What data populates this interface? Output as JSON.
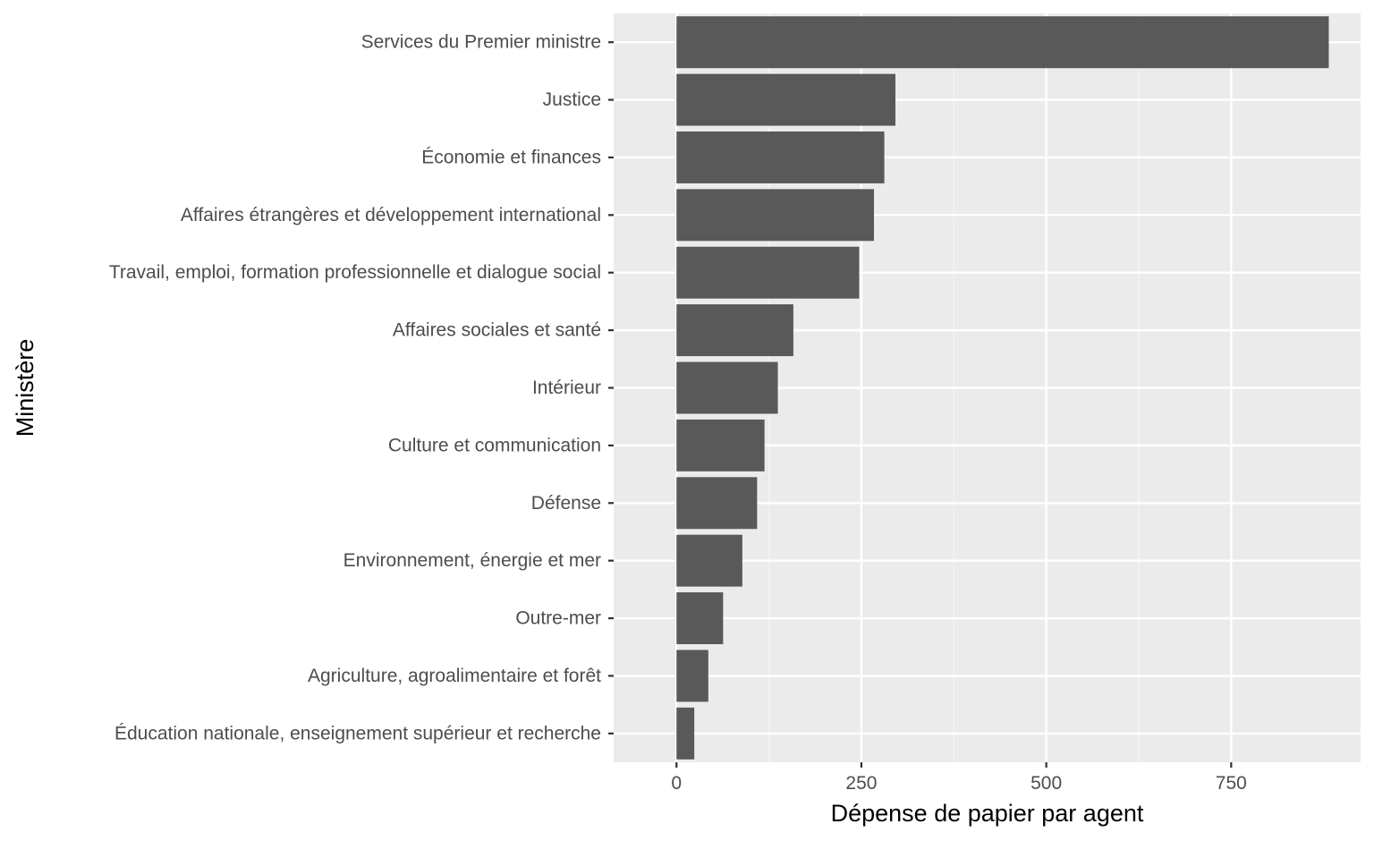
{
  "chart_data": {
    "type": "bar",
    "orientation": "horizontal",
    "categories": [
      "Services du Premier ministre",
      "Justice",
      "Économie et finances",
      "Affaires étrangères et développement international",
      "Travail, emploi, formation professionnelle et dialogue social",
      "Affaires sociales et santé",
      "Intérieur",
      "Culture et communication",
      "Défense",
      "Environnement, énergie et mer",
      "Outre-mer",
      "Agriculture, agroalimentaire et forêt",
      "Éducation nationale, enseignement supérieur et recherche"
    ],
    "values": [
      882,
      296,
      281,
      267,
      247,
      158,
      137,
      119,
      109,
      89,
      63,
      43,
      24
    ],
    "title": "",
    "xlabel": "Dépense de papier par agent",
    "ylabel": "Ministère",
    "xlim": [
      -85,
      925
    ],
    "x_ticks": [
      0,
      250,
      500,
      750
    ],
    "x_tick_labels": [
      "0",
      "250",
      "500",
      "750"
    ],
    "grid": true,
    "legend": "none",
    "colors": {
      "bar": "#595959",
      "panel_background": "#ebebeb",
      "grid_major": "#ffffff",
      "grid_minor": "#f5f5f5",
      "tick": "#333333"
    }
  }
}
